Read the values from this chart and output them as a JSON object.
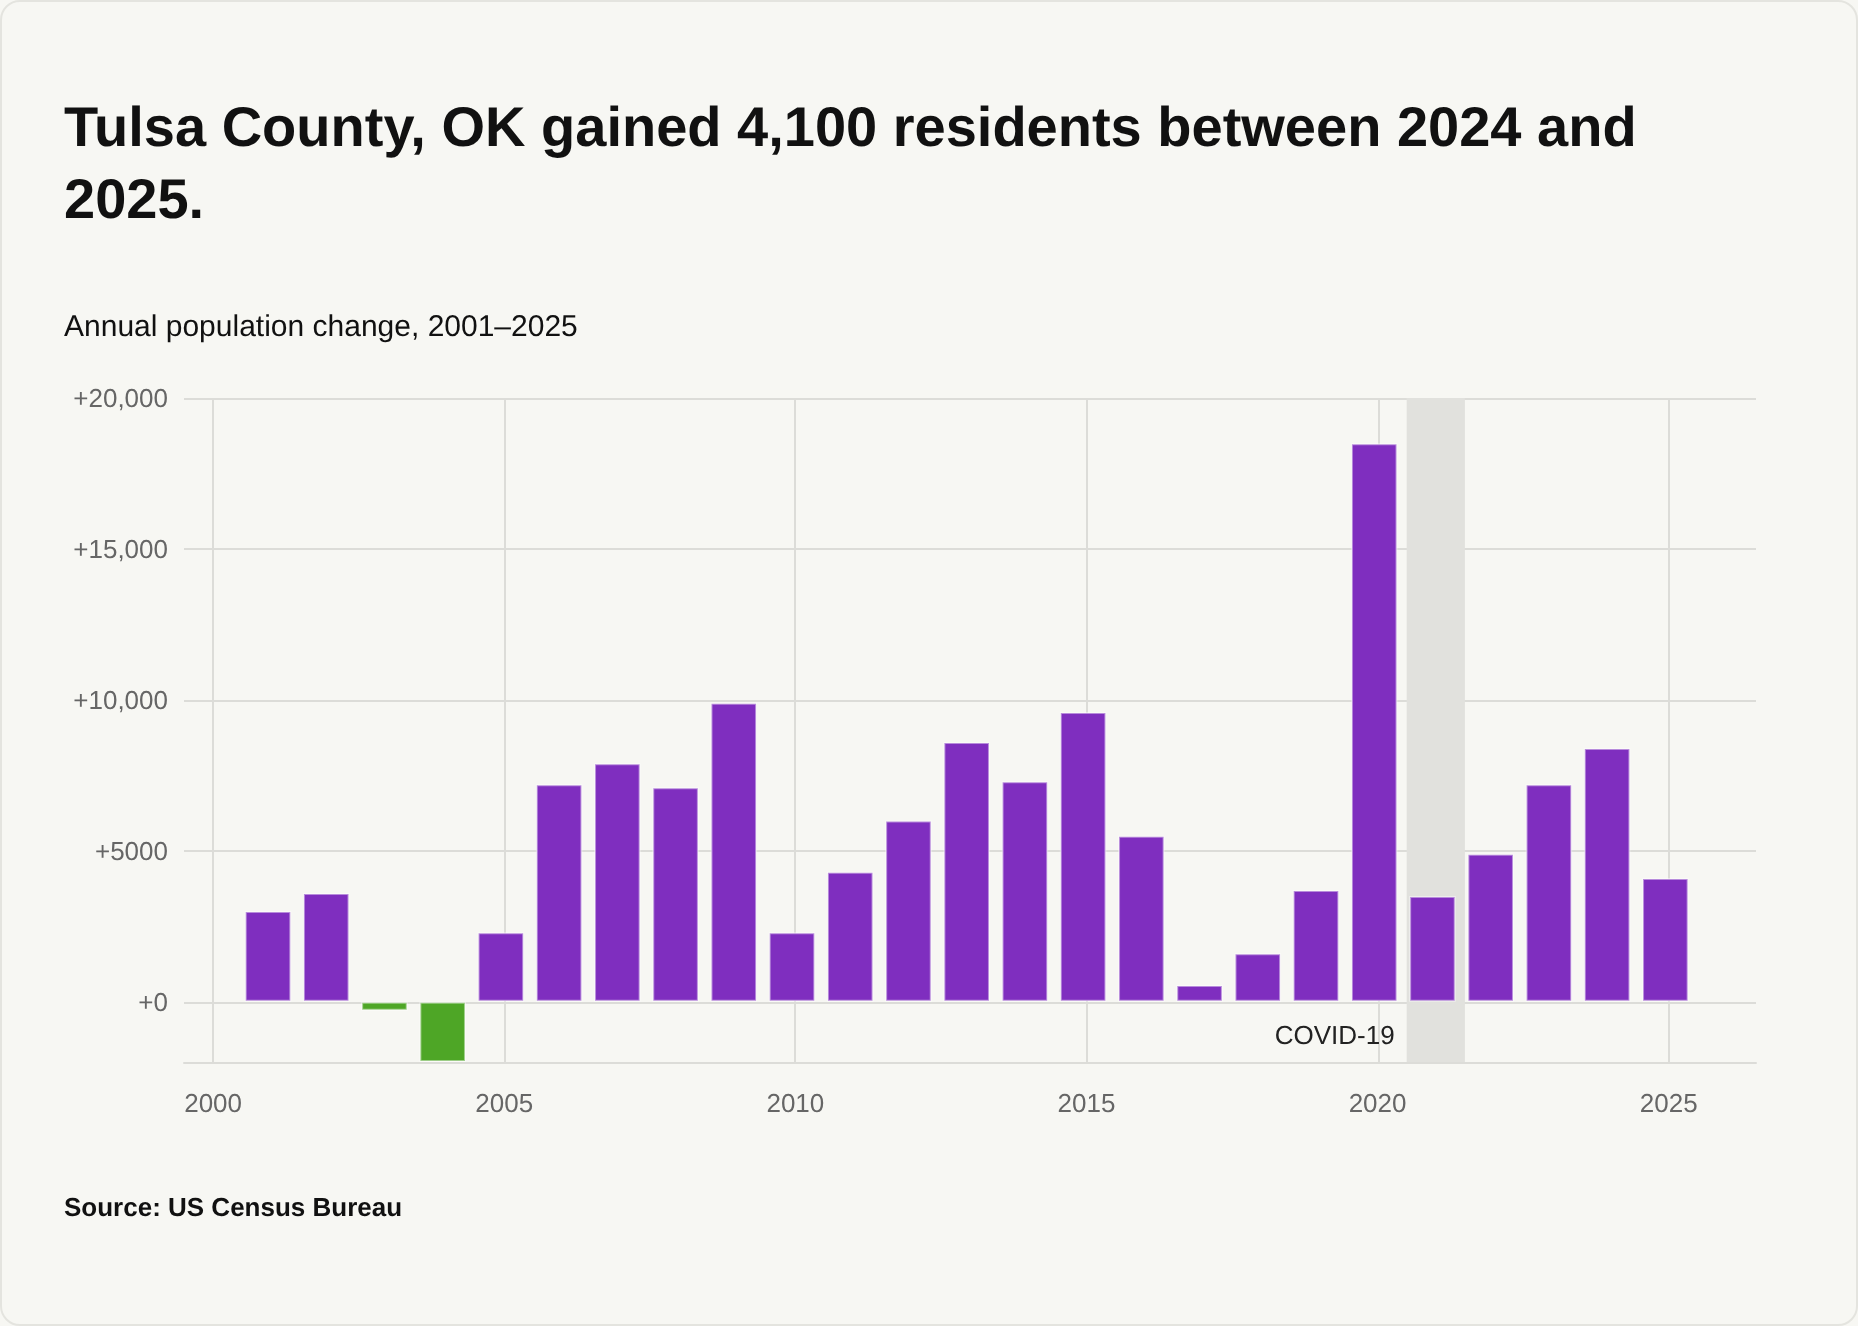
{
  "chart_data": {
    "type": "bar",
    "title": "Tulsa County, OK gained 4,100 residents between 2024 and 2025.",
    "subtitle": "Annual population change, 2001–2025",
    "annotations": [
      "Source: US Census Bureau"
    ],
    "x": [
      2001,
      2002,
      2003,
      2004,
      2005,
      2006,
      2007,
      2008,
      2009,
      2010,
      2011,
      2012,
      2013,
      2014,
      2015,
      2016,
      2017,
      2018,
      2019,
      2020,
      2021,
      2022,
      2023,
      2024,
      2025
    ],
    "values": [
      3000,
      3600,
      -300,
      -2000,
      2300,
      7200,
      7900,
      7100,
      9900,
      2300,
      4300,
      6000,
      8600,
      7300,
      9600,
      5500,
      550,
      1600,
      3700,
      18500,
      3500,
      4900,
      7200,
      8400,
      4100
    ],
    "colors": [
      "#7f2ebf",
      "#7f2ebf",
      "#4ea626",
      "#4ea626",
      "#7f2ebf",
      "#7f2ebf",
      "#7f2ebf",
      "#7f2ebf",
      "#7f2ebf",
      "#7f2ebf",
      "#7f2ebf",
      "#7f2ebf",
      "#7f2ebf",
      "#7f2ebf",
      "#7f2ebf",
      "#7f2ebf",
      "#7f2ebf",
      "#7f2ebf",
      "#7f2ebf",
      "#7f2ebf",
      "#7f2ebf",
      "#7f2ebf",
      "#7f2ebf",
      "#7f2ebf",
      "#7f2ebf"
    ],
    "xlim": [
      1999.5,
      2026.5
    ],
    "xticks": [
      2000,
      2005,
      2010,
      2015,
      2020,
      2025
    ],
    "ylim": [
      -2000,
      20000
    ],
    "yticks": [
      {
        "value": 0,
        "label": "+0"
      },
      {
        "value": 5000,
        "label": "+5000"
      },
      {
        "value": 10000,
        "label": "+10,000"
      },
      {
        "value": 15000,
        "label": "+15,000"
      },
      {
        "value": 20000,
        "label": "+20,000"
      }
    ],
    "grid": true,
    "bands": [
      {
        "axis": "x",
        "from": 2020.5,
        "to": 2021.5,
        "label": "COVID-19",
        "color": "#e1e1dd"
      }
    ]
  }
}
